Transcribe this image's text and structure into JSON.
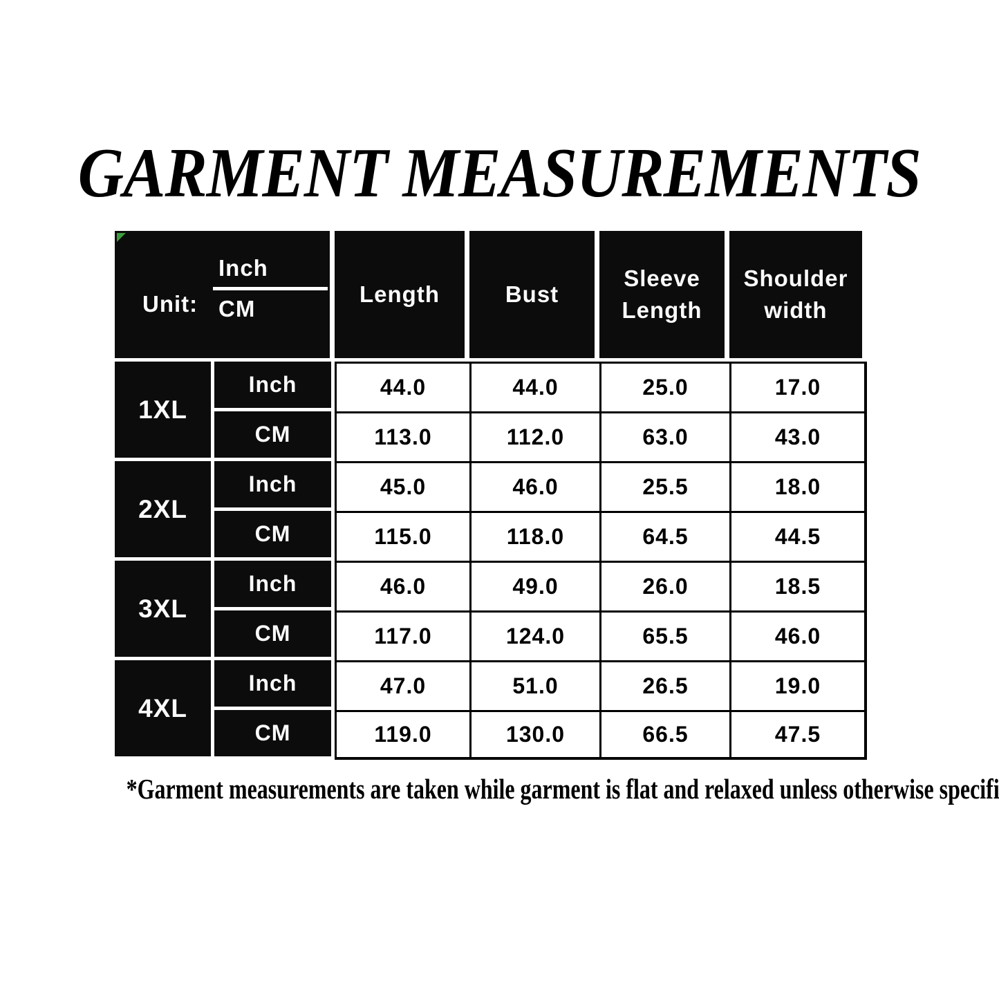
{
  "title": "GARMENT MEASUREMENTS",
  "table": {
    "unit_header": {
      "label": "Unit:",
      "top": "Inch",
      "bottom": "CM"
    },
    "columns": [
      "Length",
      "Bust",
      "Sleeve Length",
      "Shoulder width"
    ],
    "rows": [
      {
        "size": "1XL",
        "units": [
          {
            "unit": "Inch",
            "values": [
              "44.0",
              "44.0",
              "25.0",
              "17.0"
            ]
          },
          {
            "unit": "CM",
            "values": [
              "113.0",
              "112.0",
              "63.0",
              "43.0"
            ]
          }
        ]
      },
      {
        "size": "2XL",
        "units": [
          {
            "unit": "Inch",
            "values": [
              "45.0",
              "46.0",
              "25.5",
              "18.0"
            ]
          },
          {
            "unit": "CM",
            "values": [
              "115.0",
              "118.0",
              "64.5",
              "44.5"
            ]
          }
        ]
      },
      {
        "size": "3XL",
        "units": [
          {
            "unit": "Inch",
            "values": [
              "46.0",
              "49.0",
              "26.0",
              "18.5"
            ]
          },
          {
            "unit": "CM",
            "values": [
              "117.0",
              "124.0",
              "65.5",
              "46.0"
            ]
          }
        ]
      },
      {
        "size": "4XL",
        "units": [
          {
            "unit": "Inch",
            "values": [
              "47.0",
              "51.0",
              "26.5",
              "19.0"
            ]
          },
          {
            "unit": "CM",
            "values": [
              "119.0",
              "130.0",
              "66.5",
              "47.5"
            ]
          }
        ]
      }
    ]
  },
  "footnote": "*Garment measurements are taken while garment is flat and relaxed unless otherwise specified",
  "colors": {
    "cell_black": "#0c0c0c",
    "text_on_black": "#fbfbfb",
    "data_text": "#000000",
    "marker_green": "#3f9b40",
    "background": "#ffffff"
  }
}
